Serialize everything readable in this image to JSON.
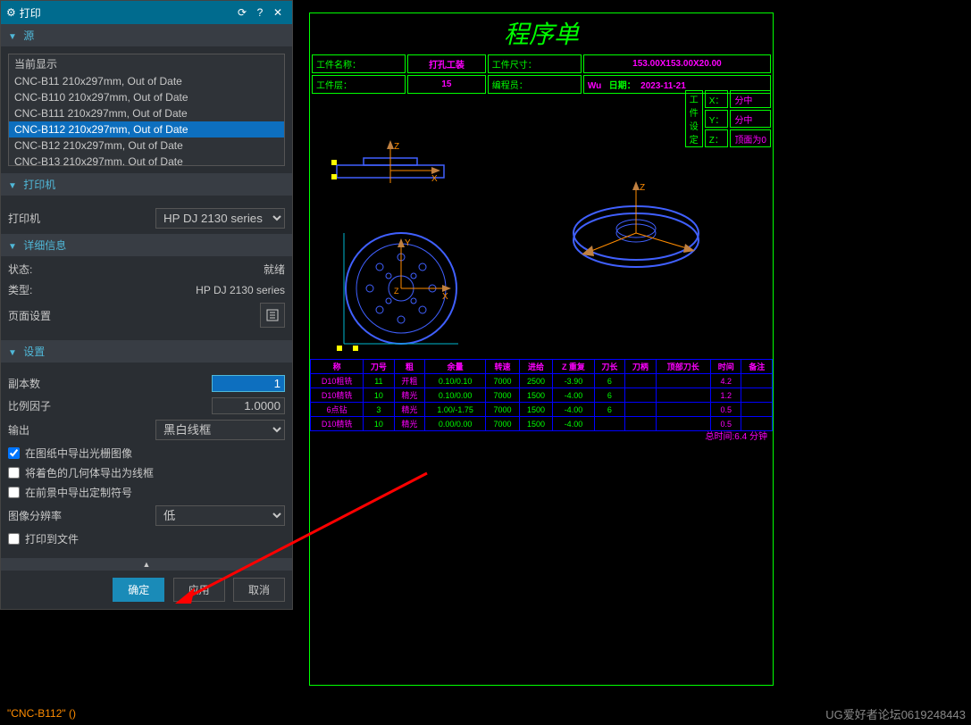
{
  "dialog": {
    "title": "打印",
    "sections": {
      "source": {
        "label": "源"
      },
      "printer": {
        "label": "打印机"
      },
      "detail": {
        "label": "详细信息"
      },
      "settings": {
        "label": "设置"
      }
    },
    "source_items": [
      "当前显示",
      "CNC-B11   210x297mm, Out of Date",
      "CNC-B110  210x297mm, Out of Date",
      "CNC-B111  210x297mm, Out of Date",
      "CNC-B112  210x297mm, Out of Date",
      "CNC-B12   210x297mm, Out of Date",
      "CNC-B13   210x297mm, Out of Date"
    ],
    "source_selected_index": 4,
    "printer_label": "打印机",
    "printer_value": "HP DJ 2130 series",
    "status_label": "状态:",
    "status_value": "就绪",
    "type_label": "类型:",
    "type_value": "HP DJ 2130 series",
    "page_setup": "页面设置",
    "copies_label": "副本数",
    "copies_value": "1",
    "scale_label": "比例因子",
    "scale_value": "1.0000",
    "output_label": "输出",
    "output_value": "黑白线框",
    "chk_raster": "在图纸中导出光栅图像",
    "chk_shaded": "将着色的几何体导出为线框",
    "chk_custom": "在前景中导出定制符号",
    "res_label": "图像分辨率",
    "res_value": "低",
    "chk_tofile": "打印到文件",
    "btn_ok": "确定",
    "btn_apply": "应用",
    "btn_cancel": "取消"
  },
  "sheet": {
    "title": "程序单",
    "header": {
      "k1": "工件名称：",
      "v1": "打孔工装",
      "k2": "工件尺寸：",
      "v2": "153.00X153.00X20.00",
      "k3": "工件层：",
      "v3": "15",
      "k4": "编程员：",
      "v4": "Wu",
      "k5": "日期：",
      "v5": "2023-11-21"
    },
    "side_label": "工件设定",
    "side": [
      {
        "k": "X：",
        "v": "分中"
      },
      {
        "k": "Y：",
        "v": "分中"
      },
      {
        "k": "Z：",
        "v": "顶面为0"
      }
    ],
    "op_headers": [
      "称",
      "刀号",
      "粗",
      "余量",
      "转速",
      "进给",
      "Z 重复",
      "刀长",
      "刀柄",
      "顶部刀长",
      "时间",
      "备注"
    ],
    "op_label_col": "D10粗铣",
    "ops": [
      {
        "tool": "D10粗铣",
        "no": "11",
        "type": "开粗",
        "allow": "0.10/0.10",
        "rpm": "7000",
        "feed": "2500",
        "z": "-3.90",
        "len": "6",
        "h": "",
        "top": "",
        "time": "4.2",
        "note": ""
      },
      {
        "tool": "D10精铣",
        "no": "10",
        "type": "精光",
        "allow": "0.10/0.00",
        "rpm": "7000",
        "feed": "1500",
        "z": "-4.00",
        "len": "6",
        "h": "",
        "top": "",
        "time": "1.2",
        "note": ""
      },
      {
        "tool": "6点钻",
        "no": "3",
        "type": "精光",
        "allow": "1.00/-1.75",
        "rpm": "7000",
        "feed": "1500",
        "z": "-4.00",
        "len": "6",
        "h": "",
        "top": "",
        "time": "0.5",
        "note": ""
      },
      {
        "tool": "D10精铣",
        "no": "10",
        "type": "精光",
        "allow": "0.00/0.00",
        "rpm": "7000",
        "feed": "1500",
        "z": "-4.00",
        "len": "",
        "h": "",
        "top": "",
        "time": "0.5",
        "note": ""
      }
    ],
    "total_time": "总时间:6.4 分钟"
  },
  "status": {
    "text": "\"CNC-B112\" ()"
  },
  "watermark": "UG爱好者论坛0619248443",
  "colors": {
    "green": "#00ff00",
    "magenta": "#ff00ff",
    "blue": "#0040ff",
    "orange": "#ff8c00",
    "yellow": "#ffff00",
    "teal": "#00b8d0"
  }
}
